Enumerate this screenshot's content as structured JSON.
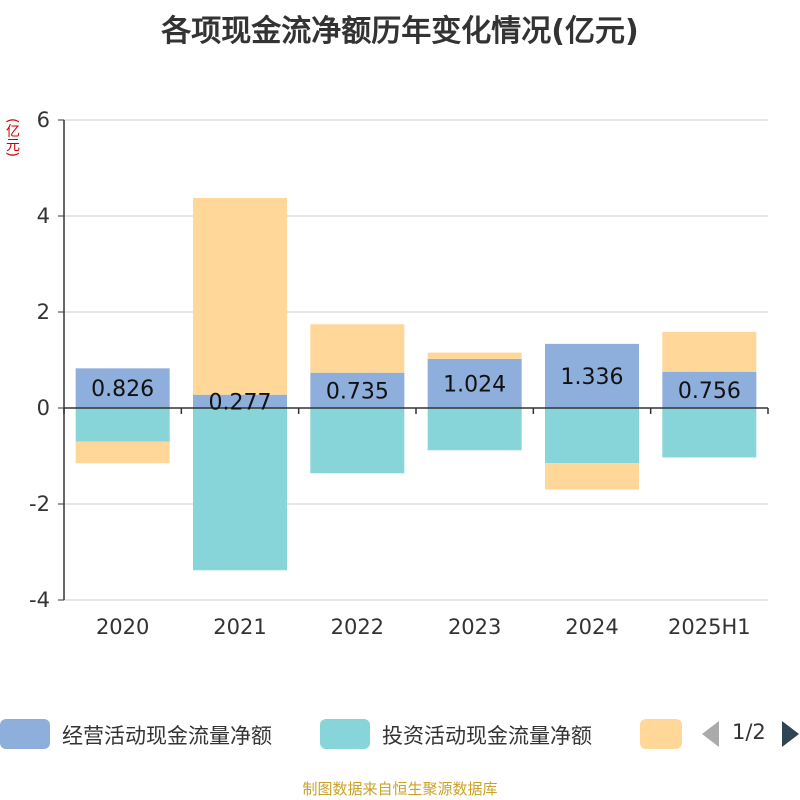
{
  "title": "各项现金流净额历年变化情况(亿元)",
  "unit_label": "(亿元)",
  "legend": {
    "items": [
      {
        "label": "经营活动现金流量净额",
        "color": "#8eaedb"
      },
      {
        "label": "投资活动现金流量净额",
        "color": "#87d5d8"
      },
      {
        "label": "",
        "color": "#ffd799"
      }
    ],
    "pager": "1/2"
  },
  "source": "制图数据来自恒生聚源数据库",
  "chart_data": {
    "type": "bar",
    "stacked": true,
    "categories": [
      "2020",
      "2021",
      "2022",
      "2023",
      "2024",
      "2025H1"
    ],
    "ylim": [
      -4,
      6
    ],
    "yticks": [
      -4,
      -2,
      0,
      2,
      4,
      6
    ],
    "grid": true,
    "legend_position": "bottom",
    "series": [
      {
        "name": "经营活动现金流量净额",
        "color": "#8eaedb",
        "values": [
          0.826,
          0.277,
          0.735,
          1.024,
          1.336,
          0.756
        ],
        "labels": [
          "0.826",
          "0.277",
          "0.735",
          "1.024",
          "1.336",
          "0.756"
        ]
      },
      {
        "name": "投资活动现金流量净额",
        "color": "#87d5d8",
        "values": [
          -0.7,
          -3.38,
          -1.36,
          -0.88,
          -1.15,
          -1.03
        ]
      },
      {
        "color": "#ffd799",
        "values": [
          -0.45,
          4.1,
          1.01,
          0.13,
          -0.55,
          0.83
        ]
      }
    ]
  }
}
